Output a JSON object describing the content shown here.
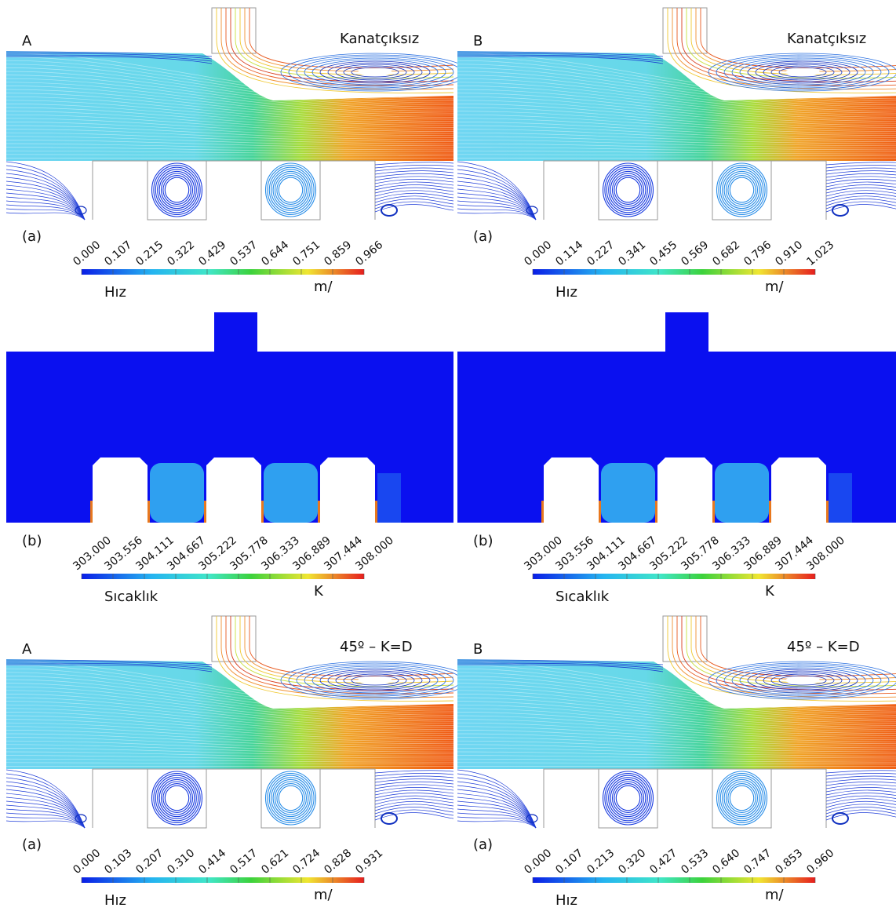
{
  "panels": [
    {
      "letter": "A",
      "title": "Kanatçıksız",
      "label": "(a)",
      "ticks": [
        "0.000",
        "0.107",
        "0.215",
        "0.322",
        "0.429",
        "0.537",
        "0.644",
        "0.751",
        "0.859",
        "0.966"
      ],
      "quantity": "Hız",
      "unit": "m/"
    },
    {
      "letter": "B",
      "title": "Kanatçıksız",
      "label": "(a)",
      "ticks": [
        "0.000",
        "0.114",
        "0.227",
        "0.341",
        "0.455",
        "0.569",
        "0.682",
        "0.796",
        "0.910",
        "1.023"
      ],
      "quantity": "Hız",
      "unit": "m/"
    },
    {
      "label": "(b)",
      "ticks": [
        "303.000",
        "303.556",
        "304.111",
        "304.667",
        "305.222",
        "305.778",
        "306.333",
        "306.889",
        "307.444",
        "308.000"
      ],
      "quantity": "Sıcaklık",
      "unit": "K"
    },
    {
      "label": "(b)",
      "ticks": [
        "303.000",
        "303.556",
        "304.111",
        "304.667",
        "305.222",
        "305.778",
        "306.333",
        "306.889",
        "307.444",
        "308.000"
      ],
      "quantity": "Sıcaklık",
      "unit": "K"
    },
    {
      "letter": "A",
      "title": "45º – K=D",
      "label": "(a)",
      "ticks": [
        "0.000",
        "0.103",
        "0.207",
        "0.310",
        "0.414",
        "0.517",
        "0.621",
        "0.724",
        "0.828",
        "0.931"
      ],
      "quantity": "Hız",
      "unit": "m/"
    },
    {
      "letter": "B",
      "title": "45º – K=D",
      "label": "(a)",
      "ticks": [
        "0.000",
        "0.107",
        "0.213",
        "0.320",
        "0.427",
        "0.533",
        "0.640",
        "0.747",
        "0.853",
        "0.960"
      ],
      "quantity": "Hız",
      "unit": "m/"
    }
  ]
}
